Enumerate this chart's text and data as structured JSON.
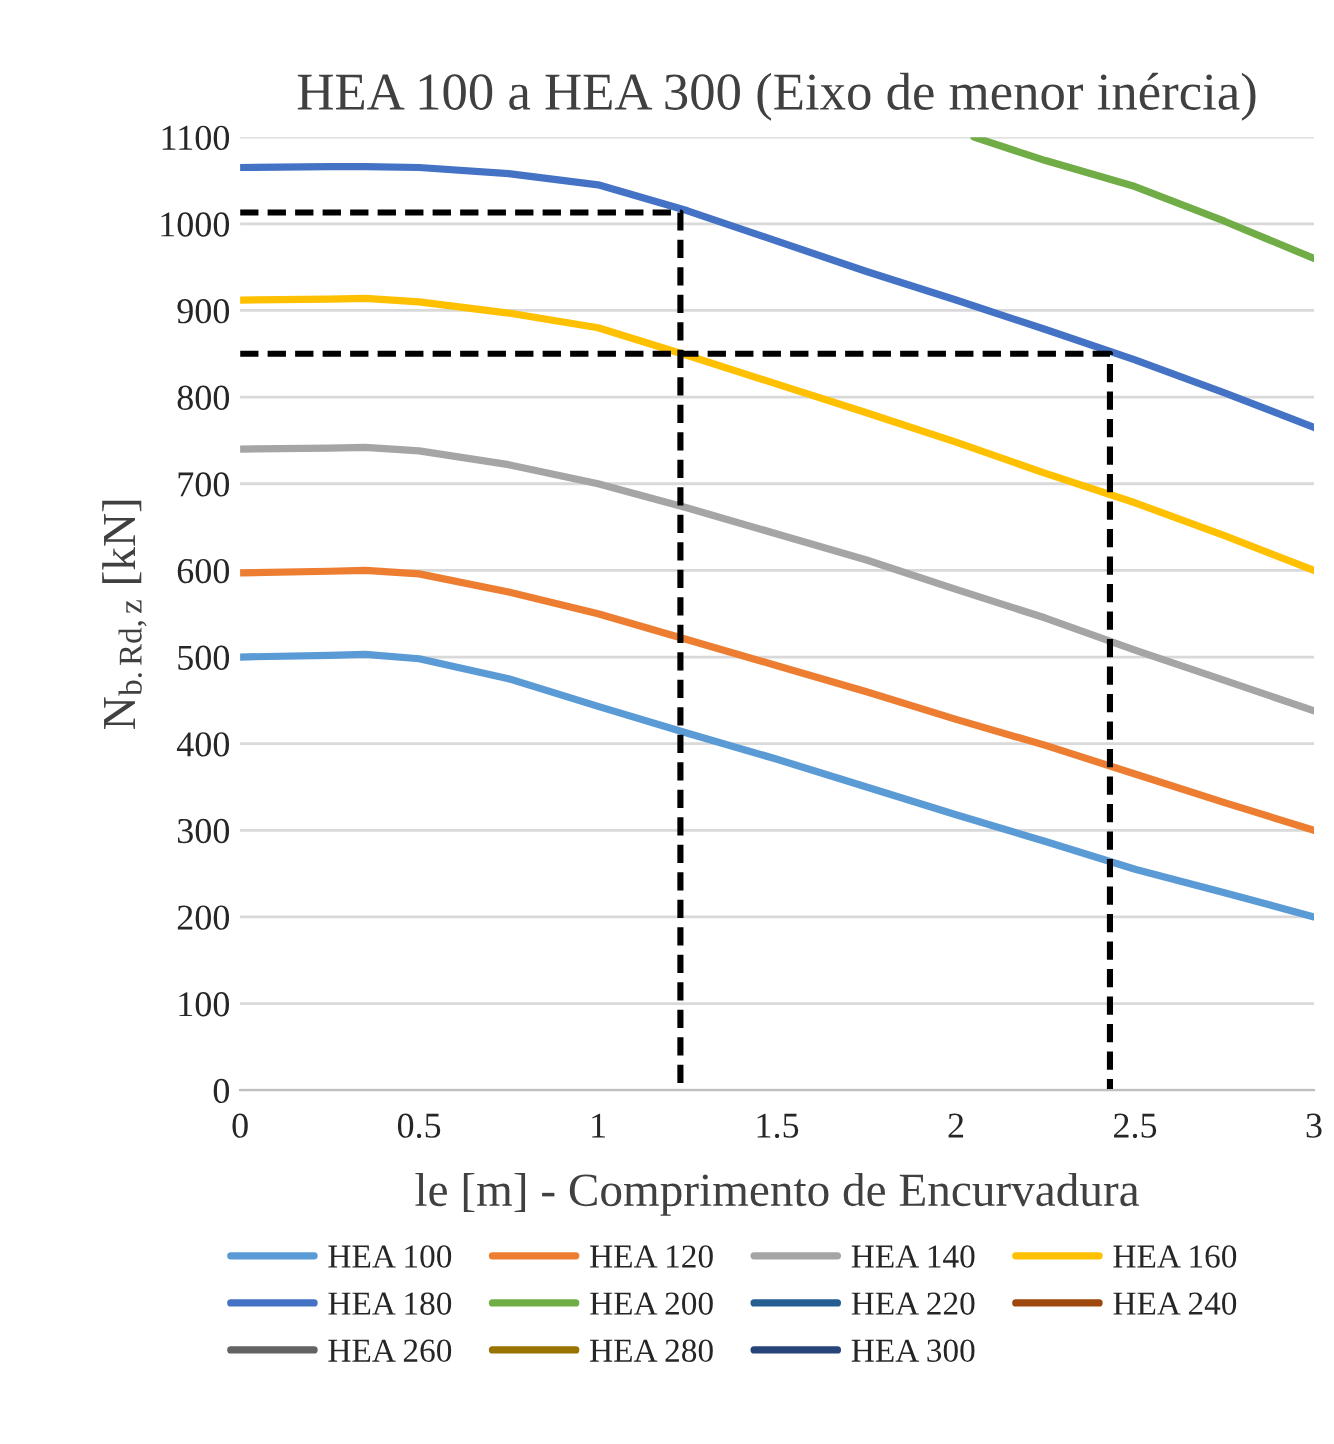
{
  "chart_data": {
    "type": "line",
    "title": "HEA 100 a HEA 300 (Eixo de menor inércia)",
    "xlabel": "le [m] - Comprimento de Encurvadura",
    "ylabel": "N$_{b.Rd,z}$ [kN]",
    "x": [
      0,
      0.25,
      0.35,
      0.5,
      0.75,
      1,
      1.25,
      1.5,
      1.75,
      2,
      2.25,
      2.5,
      2.75,
      3
    ],
    "series": [
      {
        "name": "HEA 100",
        "color": "#5b9bd5",
        "values": [
          500,
          502,
          503,
          498,
          475,
          443,
          412,
          382,
          350,
          318,
          287,
          255,
          228,
          200
        ]
      },
      {
        "name": "HEA 120",
        "color": "#ed7d31",
        "values": [
          597,
          599,
          600,
          596,
          575,
          550,
          520,
          490,
          460,
          428,
          398,
          365,
          332,
          300
        ]
      },
      {
        "name": "HEA 140",
        "color": "#a5a5a5",
        "values": [
          740,
          741,
          742,
          738,
          722,
          700,
          672,
          642,
          612,
          578,
          545,
          508,
          473,
          438
        ]
      },
      {
        "name": "HEA 160",
        "color": "#ffc000",
        "values": [
          912,
          913,
          914,
          910,
          897,
          880,
          848,
          815,
          782,
          748,
          712,
          678,
          640,
          600
        ]
      },
      {
        "name": "HEA 180",
        "color": "#4472c4",
        "values": [
          1065,
          1066,
          1066,
          1065,
          1058,
          1045,
          1015,
          980,
          945,
          912,
          878,
          843,
          805,
          765
        ]
      },
      {
        "name": "HEA 200",
        "color": "#70ad47",
        "x": [
          2.05,
          2.25,
          2.5,
          2.75,
          3
        ],
        "values": [
          1100,
          1073,
          1043,
          1003,
          960
        ]
      },
      {
        "name": "HEA 220",
        "color": "#255e91",
        "values": [
          null,
          null,
          null,
          null,
          null,
          null,
          null,
          null,
          null,
          null,
          null,
          null,
          null,
          null
        ]
      },
      {
        "name": "HEA 240",
        "color": "#9e480e",
        "values": [
          null,
          null,
          null,
          null,
          null,
          null,
          null,
          null,
          null,
          null,
          null,
          null,
          null,
          null
        ]
      },
      {
        "name": "HEA 260",
        "color": "#636363",
        "values": [
          null,
          null,
          null,
          null,
          null,
          null,
          null,
          null,
          null,
          null,
          null,
          null,
          null,
          null
        ]
      },
      {
        "name": "HEA 280",
        "color": "#997300",
        "values": [
          null,
          null,
          null,
          null,
          null,
          null,
          null,
          null,
          null,
          null,
          null,
          null,
          null,
          null
        ]
      },
      {
        "name": "HEA 300",
        "color": "#264478",
        "values": [
          null,
          null,
          null,
          null,
          null,
          null,
          null,
          null,
          null,
          null,
          null,
          null,
          null,
          null
        ]
      },
      {
        "color": "#000000",
        "line_style": "dashed",
        "x": [
          0,
          1.23,
          1.23
        ],
        "values": [
          1013,
          1013,
          0
        ]
      },
      {
        "color": "#000000",
        "line_style": "dashed",
        "x": [
          0,
          2.43,
          2.43
        ],
        "values": [
          850,
          850,
          0
        ]
      }
    ],
    "xlim": [
      0,
      3
    ],
    "xticks": [
      0,
      0.5,
      1,
      1.5,
      2,
      2.5,
      3
    ],
    "ylim": [
      0,
      1100
    ],
    "yticks": [
      0,
      100,
      200,
      300,
      400,
      500,
      600,
      700,
      800,
      900,
      1000,
      1100
    ],
    "grid": "y",
    "legend": "bottom",
    "line_style": "solid",
    "marker": "none"
  }
}
